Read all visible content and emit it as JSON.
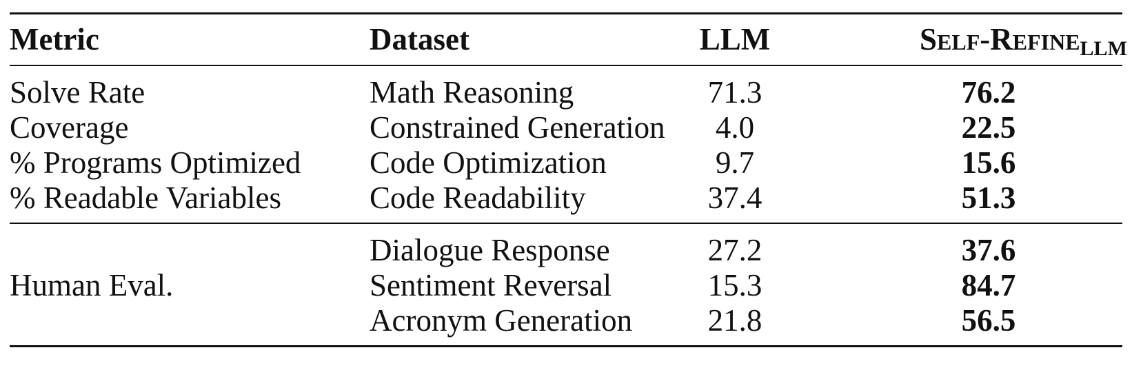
{
  "table": {
    "headers": {
      "metric": "Metric",
      "dataset": "Dataset",
      "llm": "LLM",
      "self_refine_main": "Self-Refine",
      "self_refine_sub": "LLM"
    },
    "group1": [
      {
        "metric": "Solve Rate",
        "dataset": "Math Reasoning",
        "llm": "71.3",
        "self_refine": "76.2"
      },
      {
        "metric": "Coverage",
        "dataset": "Constrained Generation",
        "llm": "4.0",
        "self_refine": "22.5"
      },
      {
        "metric": "% Programs Optimized",
        "dataset": "Code Optimization",
        "llm": "9.7",
        "self_refine": "15.6"
      },
      {
        "metric": "% Readable Variables",
        "dataset": "Code Readability",
        "llm": "37.4",
        "self_refine": "51.3"
      }
    ],
    "group2_metric": "Human Eval.",
    "group2": [
      {
        "dataset": "Dialogue Response",
        "llm": "27.2",
        "self_refine": "37.6"
      },
      {
        "dataset": "Sentiment Reversal",
        "llm": "15.3",
        "self_refine": "84.7"
      },
      {
        "dataset": "Acronym Generation",
        "llm": "21.8",
        "self_refine": "56.5"
      }
    ]
  }
}
